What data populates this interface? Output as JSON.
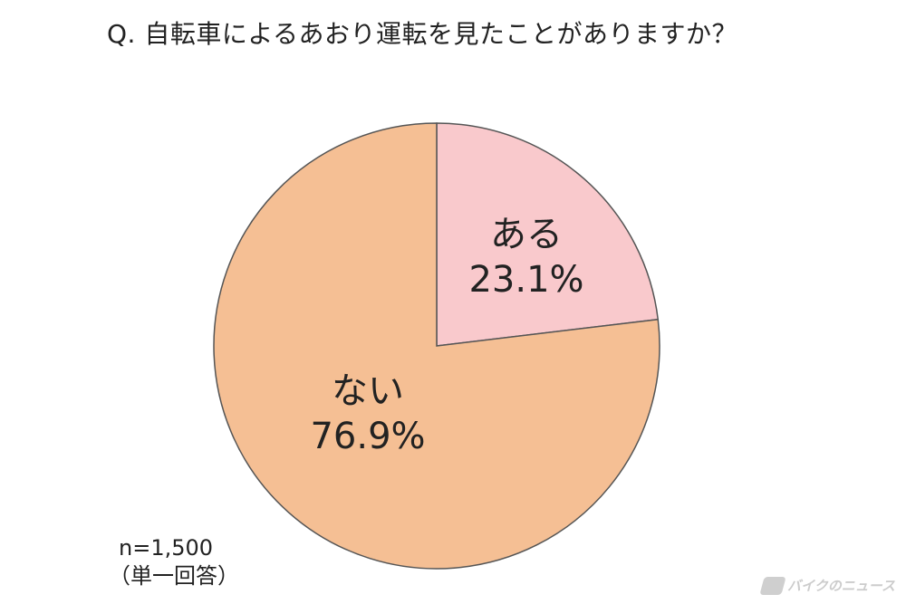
{
  "title": "Q. 自転車によるあおり運転を見たことがありますか？",
  "chart_data": {
    "type": "pie",
    "slices": [
      {
        "label": "ある",
        "value": 23.1,
        "display": "23.1%",
        "color": "#f9c9cc"
      },
      {
        "label": "ない",
        "value": 76.9,
        "display": "76.9%",
        "color": "#f5bf94"
      }
    ],
    "start": "12 o'clock",
    "direction": "clockwise",
    "stroke_color": "#555555"
  },
  "notes": {
    "sample_size": "n=1,500",
    "answer_type": "（単一回答）"
  },
  "watermark": {
    "text": "バイクのニュース",
    "icon": "bike-news-logo-icon"
  }
}
